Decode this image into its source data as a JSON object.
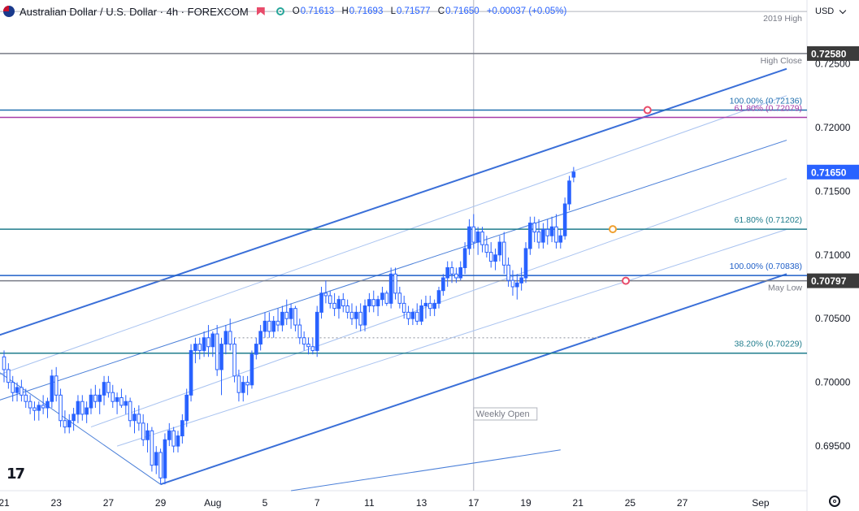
{
  "header": {
    "symbol_title": "Australian Dollar / U.S. Dollar · 4h · FOREXCOM",
    "ohlc": {
      "o_label": "O",
      "o": "0.71613",
      "h_label": "H",
      "h": "0.71693",
      "l_label": "L",
      "l": "0.71577",
      "c_label": "C",
      "c": "0.71650",
      "change": "+0.00037 (+0.05%)"
    },
    "currency": "USD",
    "icons": [
      "flag-icon",
      "sell-flag-icon",
      "data-dot-icon",
      "chevron-down-icon",
      "gear-icon",
      "tradingview-logo"
    ]
  },
  "colors": {
    "bull": "#2962ff",
    "bear": "#2962ff",
    "channel": "#3a6fd8",
    "channel_light": "#a9c3f0",
    "teal": "#1f7c8c",
    "magenta": "#a73ca8",
    "gray_level": "#787b86",
    "price_badge": "#2962ff",
    "dark_badge": "#3b3b3b"
  },
  "chart_data": {
    "type": "candlestick",
    "timeframe": "4h",
    "ylim": [
      0.6915,
      0.73
    ],
    "y_ticks": [
      {
        "v": 0.695,
        "label": "0.69500"
      },
      {
        "v": 0.7,
        "label": "0.70000"
      },
      {
        "v": 0.705,
        "label": "0.70500"
      },
      {
        "v": 0.71,
        "label": "0.71000"
      },
      {
        "v": 0.715,
        "label": "0.71500"
      },
      {
        "v": 0.72,
        "label": "0.72000"
      },
      {
        "v": 0.725,
        "label": "0.72500"
      }
    ],
    "x_ticks": [
      {
        "i": 0,
        "label": "21"
      },
      {
        "i": 12,
        "label": "23"
      },
      {
        "i": 24,
        "label": "27"
      },
      {
        "i": 36,
        "label": "29"
      },
      {
        "i": 48,
        "label": "Aug"
      },
      {
        "i": 60,
        "label": "5"
      },
      {
        "i": 72,
        "label": "7"
      },
      {
        "i": 84,
        "label": "11"
      },
      {
        "i": 96,
        "label": "13"
      },
      {
        "i": 108,
        "label": "17"
      },
      {
        "i": 120,
        "label": "19"
      },
      {
        "i": 132,
        "label": "21"
      },
      {
        "i": 144,
        "label": "25"
      },
      {
        "i": 156,
        "label": "27"
      },
      {
        "i": 174,
        "label": "Sep"
      }
    ],
    "weekly_open_index": 108,
    "weekly_open_label": "Weekly Open",
    "levels": [
      {
        "value": 0.7291,
        "label": "2019 High",
        "color": "gray",
        "badge": null
      },
      {
        "value": 0.7258,
        "label": "High Close",
        "color": "gray",
        "badge": "0.72580"
      },
      {
        "value": 0.72136,
        "label": "100.00% (0.72136)",
        "color": "teal_blue",
        "badge": null
      },
      {
        "value": 0.72079,
        "label": "61.80% (0.72079)",
        "color": "magenta",
        "badge": null
      },
      {
        "value": 0.71202,
        "label": "61.80% (0.71202)",
        "color": "teal",
        "badge": null
      },
      {
        "value": 0.70838,
        "label": "100.00% (0.70838)",
        "color": "blue",
        "badge": null
      },
      {
        "value": 0.70797,
        "label": "May Low",
        "color": "gray",
        "badge": "0.70797"
      },
      {
        "value": 0.70229,
        "label": "38.20% (0.70229)",
        "color": "teal",
        "badge": null
      }
    ],
    "last_price": 0.7165,
    "last_price_label": "0.71650",
    "channel": {
      "upper": [
        [
          -2,
          0.7036
        ],
        [
          180,
          0.7246
        ]
      ],
      "lower": [
        [
          36,
          0.692
        ],
        [
          180,
          0.7085
        ]
      ],
      "mid_lines": [
        [
          [
            -2,
            0.7005
          ],
          [
            180,
            0.7225
          ]
        ],
        [
          [
            -2,
            0.6985
          ],
          [
            180,
            0.719
          ]
        ],
        [
          [
            20,
            0.6965
          ],
          [
            180,
            0.716
          ]
        ],
        [
          [
            26,
            0.695
          ],
          [
            180,
            0.712
          ]
        ]
      ],
      "fan": [
        [
          [
            -2,
            0.701
          ],
          [
            36,
            0.692
          ]
        ],
        [
          [
            66,
            0.6915
          ],
          [
            128,
            0.6947
          ]
        ]
      ]
    },
    "markers": [
      {
        "i": 148,
        "v": 0.72136,
        "color": "#e84b6a"
      },
      {
        "i": 140,
        "v": 0.71202,
        "color": "#f0a030"
      },
      {
        "i": 143,
        "v": 0.70797,
        "color": "#e84b6a"
      }
    ],
    "candles": [
      [
        0.702,
        0.7025,
        0.7,
        0.701
      ],
      [
        0.701,
        0.7015,
        0.6995,
        0.7
      ],
      [
        0.7,
        0.7005,
        0.6985,
        0.6992
      ],
      [
        0.6992,
        0.7,
        0.6985,
        0.6996
      ],
      [
        0.6996,
        0.7002,
        0.6985,
        0.699
      ],
      [
        0.699,
        0.6995,
        0.698,
        0.6985
      ],
      [
        0.6985,
        0.699,
        0.6975,
        0.698
      ],
      [
        0.698,
        0.6985,
        0.697,
        0.6978
      ],
      [
        0.6978,
        0.6985,
        0.697,
        0.6982
      ],
      [
        0.6982,
        0.699,
        0.6975,
        0.698
      ],
      [
        0.698,
        0.6988,
        0.6972,
        0.6985
      ],
      [
        0.6985,
        0.701,
        0.698,
        0.7005
      ],
      [
        0.7005,
        0.7012,
        0.6985,
        0.699
      ],
      [
        0.699,
        0.6995,
        0.6965,
        0.697
      ],
      [
        0.697,
        0.6978,
        0.696,
        0.6965
      ],
      [
        0.6965,
        0.6975,
        0.696,
        0.697
      ],
      [
        0.697,
        0.698,
        0.6962,
        0.6975
      ],
      [
        0.6975,
        0.699,
        0.6968,
        0.6985
      ],
      [
        0.6985,
        0.699,
        0.697,
        0.6975
      ],
      [
        0.6975,
        0.6985,
        0.6968,
        0.698
      ],
      [
        0.698,
        0.6995,
        0.6975,
        0.699
      ],
      [
        0.699,
        0.6998,
        0.698,
        0.6985
      ],
      [
        0.6985,
        0.6995,
        0.6975,
        0.699
      ],
      [
        0.699,
        0.7005,
        0.6982,
        0.7
      ],
      [
        0.7,
        0.7005,
        0.6988,
        0.6992
      ],
      [
        0.6992,
        0.6998,
        0.698,
        0.6985
      ],
      [
        0.6985,
        0.6992,
        0.6975,
        0.6988
      ],
      [
        0.6988,
        0.6995,
        0.698,
        0.6982
      ],
      [
        0.6982,
        0.699,
        0.6975,
        0.6985
      ],
      [
        0.6985,
        0.6988,
        0.6965,
        0.697
      ],
      [
        0.697,
        0.698,
        0.696,
        0.6975
      ],
      [
        0.6975,
        0.6982,
        0.6962,
        0.6968
      ],
      [
        0.6968,
        0.6975,
        0.695,
        0.6955
      ],
      [
        0.6955,
        0.6968,
        0.6945,
        0.6962
      ],
      [
        0.6962,
        0.6965,
        0.693,
        0.6935
      ],
      [
        0.6935,
        0.695,
        0.6928,
        0.6945
      ],
      [
        0.6945,
        0.6948,
        0.692,
        0.6925
      ],
      [
        0.6925,
        0.696,
        0.692,
        0.6955
      ],
      [
        0.6955,
        0.6968,
        0.695,
        0.6962
      ],
      [
        0.6962,
        0.6965,
        0.6945,
        0.695
      ],
      [
        0.695,
        0.6962,
        0.6945,
        0.6958
      ],
      [
        0.6958,
        0.6975,
        0.6952,
        0.697
      ],
      [
        0.697,
        0.6995,
        0.6965,
        0.699
      ],
      [
        0.699,
        0.703,
        0.6985,
        0.7025
      ],
      [
        0.7025,
        0.7035,
        0.7015,
        0.703
      ],
      [
        0.703,
        0.7035,
        0.7018,
        0.7025
      ],
      [
        0.7025,
        0.704,
        0.702,
        0.7035
      ],
      [
        0.7035,
        0.7045,
        0.702,
        0.7028
      ],
      [
        0.7028,
        0.704,
        0.702,
        0.7038
      ],
      [
        0.7038,
        0.7045,
        0.7005,
        0.701
      ],
      [
        0.701,
        0.7035,
        0.699,
        0.703
      ],
      [
        0.703,
        0.7045,
        0.7022,
        0.704
      ],
      [
        0.704,
        0.705,
        0.7025,
        0.703
      ],
      [
        0.703,
        0.7035,
        0.7,
        0.7005
      ],
      [
        0.7005,
        0.701,
        0.6985,
        0.6992
      ],
      [
        0.6992,
        0.7005,
        0.6985,
        0.7
      ],
      [
        0.7,
        0.7005,
        0.699,
        0.6998
      ],
      [
        0.6998,
        0.7025,
        0.6995,
        0.7022
      ],
      [
        0.7022,
        0.7035,
        0.7018,
        0.703
      ],
      [
        0.703,
        0.7045,
        0.7025,
        0.704
      ],
      [
        0.704,
        0.7055,
        0.7035,
        0.7048
      ],
      [
        0.7048,
        0.7055,
        0.7035,
        0.704
      ],
      [
        0.704,
        0.7052,
        0.7035,
        0.7048
      ],
      [
        0.7048,
        0.7058,
        0.704,
        0.7045
      ],
      [
        0.7045,
        0.706,
        0.704,
        0.7055
      ],
      [
        0.7055,
        0.7065,
        0.7045,
        0.705
      ],
      [
        0.705,
        0.7062,
        0.7042,
        0.7058
      ],
      [
        0.7058,
        0.706,
        0.704,
        0.7045
      ],
      [
        0.7045,
        0.705,
        0.703,
        0.7035
      ],
      [
        0.7035,
        0.704,
        0.7025,
        0.703
      ],
      [
        0.703,
        0.7035,
        0.7022,
        0.7028
      ],
      [
        0.7028,
        0.7035,
        0.7022,
        0.7025
      ],
      [
        0.7025,
        0.706,
        0.702,
        0.7055
      ],
      [
        0.7055,
        0.7075,
        0.705,
        0.707
      ],
      [
        0.707,
        0.708,
        0.7062,
        0.7068
      ],
      [
        0.7068,
        0.7072,
        0.7058,
        0.7062
      ],
      [
        0.7062,
        0.707,
        0.7052,
        0.7058
      ],
      [
        0.7058,
        0.7068,
        0.705,
        0.7065
      ],
      [
        0.7065,
        0.707,
        0.7055,
        0.706
      ],
      [
        0.706,
        0.7065,
        0.705,
        0.7055
      ],
      [
        0.7055,
        0.7062,
        0.7045,
        0.705
      ],
      [
        0.705,
        0.706,
        0.7042,
        0.7055
      ],
      [
        0.7055,
        0.7062,
        0.704,
        0.7045
      ],
      [
        0.7045,
        0.7065,
        0.704,
        0.706
      ],
      [
        0.706,
        0.707,
        0.7055,
        0.7065
      ],
      [
        0.7065,
        0.7072,
        0.7055,
        0.706
      ],
      [
        0.706,
        0.7068,
        0.7052,
        0.7065
      ],
      [
        0.7065,
        0.7075,
        0.706,
        0.707
      ],
      [
        0.707,
        0.7072,
        0.706,
        0.7062
      ],
      [
        0.7062,
        0.709,
        0.7058,
        0.7085
      ],
      [
        0.7085,
        0.709,
        0.7065,
        0.707
      ],
      [
        0.707,
        0.7075,
        0.7058,
        0.7062
      ],
      [
        0.7062,
        0.7068,
        0.705,
        0.7055
      ],
      [
        0.7055,
        0.706,
        0.7045,
        0.705
      ],
      [
        0.705,
        0.7058,
        0.7045,
        0.7055
      ],
      [
        0.7055,
        0.7062,
        0.7045,
        0.7048
      ],
      [
        0.7048,
        0.7065,
        0.7045,
        0.706
      ],
      [
        0.706,
        0.7068,
        0.705,
        0.7062
      ],
      [
        0.7062,
        0.7068,
        0.7052,
        0.7058
      ],
      [
        0.7058,
        0.7065,
        0.7052,
        0.7062
      ],
      [
        0.7062,
        0.7075,
        0.7058,
        0.7072
      ],
      [
        0.7072,
        0.7085,
        0.7068,
        0.7082
      ],
      [
        0.7082,
        0.7095,
        0.7075,
        0.709
      ],
      [
        0.709,
        0.7095,
        0.7078,
        0.7085
      ],
      [
        0.7085,
        0.709,
        0.7078,
        0.7082
      ],
      [
        0.7082,
        0.7095,
        0.708,
        0.709
      ],
      [
        0.709,
        0.711,
        0.7085,
        0.7105
      ],
      [
        0.7105,
        0.7128,
        0.71,
        0.7122
      ],
      [
        0.7122,
        0.7132,
        0.7105,
        0.711
      ],
      [
        0.711,
        0.7122,
        0.71,
        0.7118
      ],
      [
        0.7118,
        0.7122,
        0.7102,
        0.7108
      ],
      [
        0.7108,
        0.7115,
        0.7098,
        0.7102
      ],
      [
        0.7102,
        0.711,
        0.709,
        0.7095
      ],
      [
        0.7095,
        0.7105,
        0.7088,
        0.71
      ],
      [
        0.71,
        0.7115,
        0.7095,
        0.711
      ],
      [
        0.711,
        0.7118,
        0.7085,
        0.7092
      ],
      [
        0.7092,
        0.7098,
        0.7075,
        0.708
      ],
      [
        0.708,
        0.7088,
        0.7068,
        0.7075
      ],
      [
        0.7075,
        0.7085,
        0.7065,
        0.7078
      ],
      [
        0.7078,
        0.709,
        0.7072,
        0.7082
      ],
      [
        0.7082,
        0.711,
        0.7078,
        0.7105
      ],
      [
        0.7105,
        0.713,
        0.71,
        0.7125
      ],
      [
        0.7125,
        0.713,
        0.711,
        0.7118
      ],
      [
        0.7118,
        0.7128,
        0.7105,
        0.711
      ],
      [
        0.711,
        0.7125,
        0.7105,
        0.712
      ],
      [
        0.712,
        0.7128,
        0.7108,
        0.7115
      ],
      [
        0.7115,
        0.713,
        0.711,
        0.7122
      ],
      [
        0.7122,
        0.7132,
        0.7105,
        0.711
      ],
      [
        0.711,
        0.712,
        0.7105,
        0.7115
      ],
      [
        0.7115,
        0.7145,
        0.7112,
        0.714
      ],
      [
        0.714,
        0.7162,
        0.7135,
        0.7158
      ],
      [
        0.7161,
        0.7169,
        0.7157,
        0.7165
      ]
    ]
  }
}
